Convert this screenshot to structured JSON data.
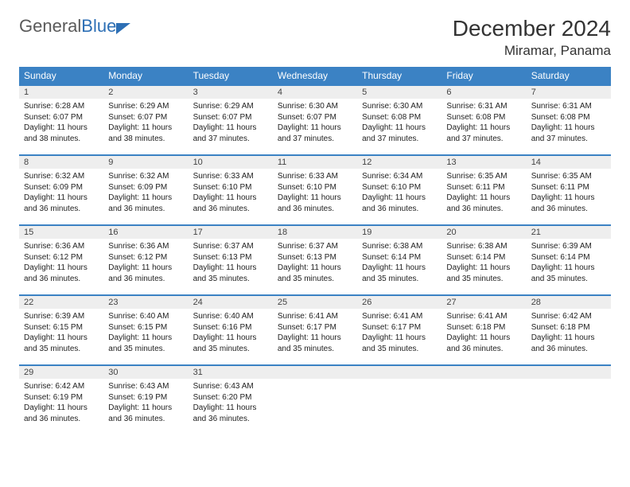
{
  "logo": {
    "text1": "General",
    "text2": "Blue"
  },
  "title": "December 2024",
  "location": "Miramar, Panama",
  "colors": {
    "header_bg": "#3b82c4",
    "header_text": "#ffffff",
    "daynum_bg": "#eeeeee",
    "border": "#3b82c4",
    "title_color": "#333333",
    "logo_gray": "#5a5a5a",
    "logo_blue": "#2d6fb5"
  },
  "daynames": [
    "Sunday",
    "Monday",
    "Tuesday",
    "Wednesday",
    "Thursday",
    "Friday",
    "Saturday"
  ],
  "weeks": [
    [
      {
        "n": "1",
        "sr": "Sunrise: 6:28 AM",
        "ss": "Sunset: 6:07 PM",
        "dl": "Daylight: 11 hours and 38 minutes."
      },
      {
        "n": "2",
        "sr": "Sunrise: 6:29 AM",
        "ss": "Sunset: 6:07 PM",
        "dl": "Daylight: 11 hours and 38 minutes."
      },
      {
        "n": "3",
        "sr": "Sunrise: 6:29 AM",
        "ss": "Sunset: 6:07 PM",
        "dl": "Daylight: 11 hours and 37 minutes."
      },
      {
        "n": "4",
        "sr": "Sunrise: 6:30 AM",
        "ss": "Sunset: 6:07 PM",
        "dl": "Daylight: 11 hours and 37 minutes."
      },
      {
        "n": "5",
        "sr": "Sunrise: 6:30 AM",
        "ss": "Sunset: 6:08 PM",
        "dl": "Daylight: 11 hours and 37 minutes."
      },
      {
        "n": "6",
        "sr": "Sunrise: 6:31 AM",
        "ss": "Sunset: 6:08 PM",
        "dl": "Daylight: 11 hours and 37 minutes."
      },
      {
        "n": "7",
        "sr": "Sunrise: 6:31 AM",
        "ss": "Sunset: 6:08 PM",
        "dl": "Daylight: 11 hours and 37 minutes."
      }
    ],
    [
      {
        "n": "8",
        "sr": "Sunrise: 6:32 AM",
        "ss": "Sunset: 6:09 PM",
        "dl": "Daylight: 11 hours and 36 minutes."
      },
      {
        "n": "9",
        "sr": "Sunrise: 6:32 AM",
        "ss": "Sunset: 6:09 PM",
        "dl": "Daylight: 11 hours and 36 minutes."
      },
      {
        "n": "10",
        "sr": "Sunrise: 6:33 AM",
        "ss": "Sunset: 6:10 PM",
        "dl": "Daylight: 11 hours and 36 minutes."
      },
      {
        "n": "11",
        "sr": "Sunrise: 6:33 AM",
        "ss": "Sunset: 6:10 PM",
        "dl": "Daylight: 11 hours and 36 minutes."
      },
      {
        "n": "12",
        "sr": "Sunrise: 6:34 AM",
        "ss": "Sunset: 6:10 PM",
        "dl": "Daylight: 11 hours and 36 minutes."
      },
      {
        "n": "13",
        "sr": "Sunrise: 6:35 AM",
        "ss": "Sunset: 6:11 PM",
        "dl": "Daylight: 11 hours and 36 minutes."
      },
      {
        "n": "14",
        "sr": "Sunrise: 6:35 AM",
        "ss": "Sunset: 6:11 PM",
        "dl": "Daylight: 11 hours and 36 minutes."
      }
    ],
    [
      {
        "n": "15",
        "sr": "Sunrise: 6:36 AM",
        "ss": "Sunset: 6:12 PM",
        "dl": "Daylight: 11 hours and 36 minutes."
      },
      {
        "n": "16",
        "sr": "Sunrise: 6:36 AM",
        "ss": "Sunset: 6:12 PM",
        "dl": "Daylight: 11 hours and 36 minutes."
      },
      {
        "n": "17",
        "sr": "Sunrise: 6:37 AM",
        "ss": "Sunset: 6:13 PM",
        "dl": "Daylight: 11 hours and 35 minutes."
      },
      {
        "n": "18",
        "sr": "Sunrise: 6:37 AM",
        "ss": "Sunset: 6:13 PM",
        "dl": "Daylight: 11 hours and 35 minutes."
      },
      {
        "n": "19",
        "sr": "Sunrise: 6:38 AM",
        "ss": "Sunset: 6:14 PM",
        "dl": "Daylight: 11 hours and 35 minutes."
      },
      {
        "n": "20",
        "sr": "Sunrise: 6:38 AM",
        "ss": "Sunset: 6:14 PM",
        "dl": "Daylight: 11 hours and 35 minutes."
      },
      {
        "n": "21",
        "sr": "Sunrise: 6:39 AM",
        "ss": "Sunset: 6:14 PM",
        "dl": "Daylight: 11 hours and 35 minutes."
      }
    ],
    [
      {
        "n": "22",
        "sr": "Sunrise: 6:39 AM",
        "ss": "Sunset: 6:15 PM",
        "dl": "Daylight: 11 hours and 35 minutes."
      },
      {
        "n": "23",
        "sr": "Sunrise: 6:40 AM",
        "ss": "Sunset: 6:15 PM",
        "dl": "Daylight: 11 hours and 35 minutes."
      },
      {
        "n": "24",
        "sr": "Sunrise: 6:40 AM",
        "ss": "Sunset: 6:16 PM",
        "dl": "Daylight: 11 hours and 35 minutes."
      },
      {
        "n": "25",
        "sr": "Sunrise: 6:41 AM",
        "ss": "Sunset: 6:17 PM",
        "dl": "Daylight: 11 hours and 35 minutes."
      },
      {
        "n": "26",
        "sr": "Sunrise: 6:41 AM",
        "ss": "Sunset: 6:17 PM",
        "dl": "Daylight: 11 hours and 35 minutes."
      },
      {
        "n": "27",
        "sr": "Sunrise: 6:41 AM",
        "ss": "Sunset: 6:18 PM",
        "dl": "Daylight: 11 hours and 36 minutes."
      },
      {
        "n": "28",
        "sr": "Sunrise: 6:42 AM",
        "ss": "Sunset: 6:18 PM",
        "dl": "Daylight: 11 hours and 36 minutes."
      }
    ],
    [
      {
        "n": "29",
        "sr": "Sunrise: 6:42 AM",
        "ss": "Sunset: 6:19 PM",
        "dl": "Daylight: 11 hours and 36 minutes."
      },
      {
        "n": "30",
        "sr": "Sunrise: 6:43 AM",
        "ss": "Sunset: 6:19 PM",
        "dl": "Daylight: 11 hours and 36 minutes."
      },
      {
        "n": "31",
        "sr": "Sunrise: 6:43 AM",
        "ss": "Sunset: 6:20 PM",
        "dl": "Daylight: 11 hours and 36 minutes."
      },
      {
        "n": "",
        "sr": "",
        "ss": "",
        "dl": ""
      },
      {
        "n": "",
        "sr": "",
        "ss": "",
        "dl": ""
      },
      {
        "n": "",
        "sr": "",
        "ss": "",
        "dl": ""
      },
      {
        "n": "",
        "sr": "",
        "ss": "",
        "dl": ""
      }
    ]
  ]
}
